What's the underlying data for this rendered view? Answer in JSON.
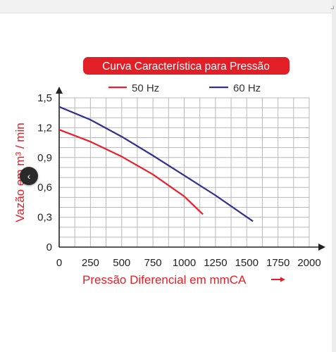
{
  "chart_data": {
    "type": "line",
    "title": "Curva Característica para Pressão",
    "xlabel": "Pressão Diferencial em mmCA",
    "ylabel": "Vazão em m³ / min",
    "xlim": [
      0,
      2000
    ],
    "ylim": [
      0,
      1.5
    ],
    "x_ticks": [
      "0",
      "250",
      "500",
      "750",
      "1000",
      "1250",
      "1500",
      "1750",
      "2000"
    ],
    "y_ticks": [
      "0",
      "0,3",
      "0,6",
      "0,9",
      "1,2",
      "1,5"
    ],
    "grid": true,
    "legend_position": "top",
    "series": [
      {
        "name": "50 Hz",
        "color": "#e8202a",
        "points": [
          [
            0,
            1.18
          ],
          [
            250,
            1.06
          ],
          [
            500,
            0.91
          ],
          [
            750,
            0.73
          ],
          [
            1000,
            0.51
          ],
          [
            1150,
            0.33
          ]
        ]
      },
      {
        "name": "60 Hz",
        "color": "#2e3192",
        "points": [
          [
            0,
            1.41
          ],
          [
            250,
            1.28
          ],
          [
            500,
            1.11
          ],
          [
            750,
            0.92
          ],
          [
            1000,
            0.72
          ],
          [
            1250,
            0.52
          ],
          [
            1550,
            0.26
          ]
        ]
      }
    ],
    "title_bg_color": "#e21e26",
    "axis_title_color": "#e21e26"
  },
  "nav": {
    "back_icon": "‹"
  },
  "frame": {
    "corner_mark": "⌟"
  }
}
